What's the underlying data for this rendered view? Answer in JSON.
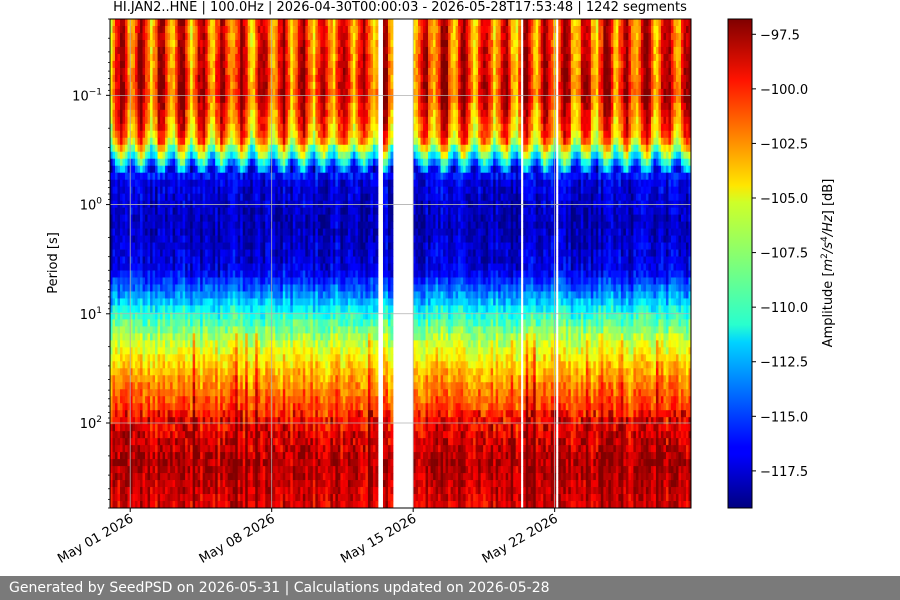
{
  "chart_data": {
    "type": "heatmap",
    "title": "HI.JAN2..HNE | 100.0Hz | 2026-04-30T00:00:03 - 2026-05-28T17:53:48 | 1242 segments",
    "xlabel": "",
    "ylabel": "Period [s]",
    "y_scale": "log",
    "y_inverted": true,
    "xlim": [
      "2026-04-30",
      "2026-05-28"
    ],
    "ylim": [
      0.02,
      600
    ],
    "x_tick_labels": [
      "May 01 2026",
      "May 08 2026",
      "May 15 2026",
      "May 22 2026"
    ],
    "x_tick_dates": [
      "2026-05-01",
      "2026-05-08",
      "2026-05-15",
      "2026-05-22"
    ],
    "y_tick_values": [
      0.1,
      1,
      10,
      100
    ],
    "y_tick_labels": [
      {
        "base": "10",
        "exp": "−1"
      },
      {
        "base": "10",
        "exp": "0"
      },
      {
        "base": "10",
        "exp": "1"
      },
      {
        "base": "10",
        "exp": "2"
      }
    ],
    "colorbar": {
      "label_prefix": "Amplitude [",
      "label_unit": "m",
      "label_exp1": "2",
      "label_sep": "/s",
      "label_exp2": "4",
      "label_end": "/Hz",
      "label_suffix": "] [dB]",
      "colormap": "jet",
      "vmin": -119.2,
      "vmax": -96.8,
      "ticks": [
        -97.5,
        -100.0,
        -102.5,
        -105.0,
        -107.5,
        -110.0,
        -112.5,
        -115.0,
        -117.5
      ],
      "tick_labels": [
        "−97.5",
        "−100.0",
        "−102.5",
        "−105.0",
        "−107.5",
        "−110.0",
        "−112.5",
        "−115.0",
        "−117.5"
      ]
    },
    "data_gaps": [
      {
        "start": "2026-05-13T06:00",
        "end": "2026-05-13T12:00"
      },
      {
        "start": "2026-05-14T00:00",
        "end": "2026-05-15T00:00"
      },
      {
        "start": "2026-05-20T07:00",
        "end": "2026-05-20T12:00"
      },
      {
        "start": "2026-05-22T00:00",
        "end": "2026-05-22T05:00"
      }
    ],
    "spectrum_profile": [
      {
        "period": 0.02,
        "level": -101
      },
      {
        "period": 0.03,
        "level": -101
      },
      {
        "period": 0.1,
        "level": -100
      },
      {
        "period": 0.25,
        "level": -103
      },
      {
        "period": 0.35,
        "level": -109
      },
      {
        "period": 0.45,
        "level": -114
      },
      {
        "period": 0.6,
        "level": -117
      },
      {
        "period": 1.5,
        "level": -118
      },
      {
        "period": 4,
        "level": -117
      },
      {
        "period": 7,
        "level": -113
      },
      {
        "period": 10,
        "level": -110
      },
      {
        "period": 20,
        "level": -106
      },
      {
        "period": 40,
        "level": -103
      },
      {
        "period": 100,
        "level": -100
      },
      {
        "period": 250,
        "level": -98
      },
      {
        "period": 600,
        "level": -99
      }
    ]
  },
  "footer": {
    "text": "Generated by SeedPSD on 2026-05-31 | Calculations updated on 2026-05-28"
  }
}
